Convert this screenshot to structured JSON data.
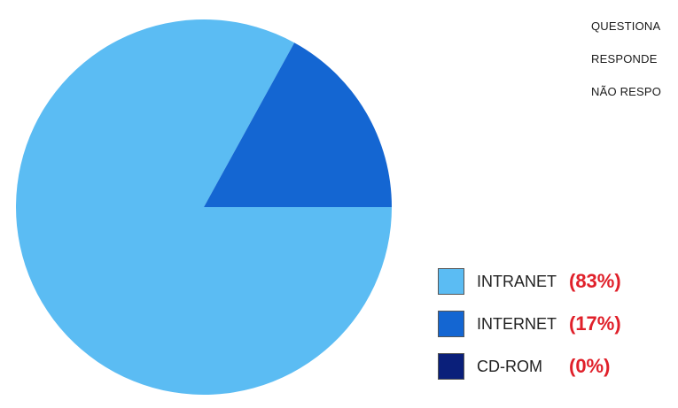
{
  "info_lines": [
    "QUESTIONA",
    "RESPONDE",
    "NÃO RESPO"
  ],
  "colors": {
    "intranet": "#5bbcf3",
    "internet": "#1466d2",
    "cdrom": "#0a1f7a",
    "percent_text": "#e0202a"
  },
  "chart_data": {
    "type": "pie",
    "title": "",
    "slices": [
      {
        "name": "INTRANET",
        "value": 83,
        "label": "(83%)",
        "color": "#5bbcf3"
      },
      {
        "name": "INTERNET",
        "value": 17,
        "label": "(17%)",
        "color": "#1466d2"
      },
      {
        "name": "CD-ROM",
        "value": 0,
        "label": "(0%)",
        "color": "#0a1f7a"
      }
    ],
    "legend_position": "bottom-right"
  }
}
